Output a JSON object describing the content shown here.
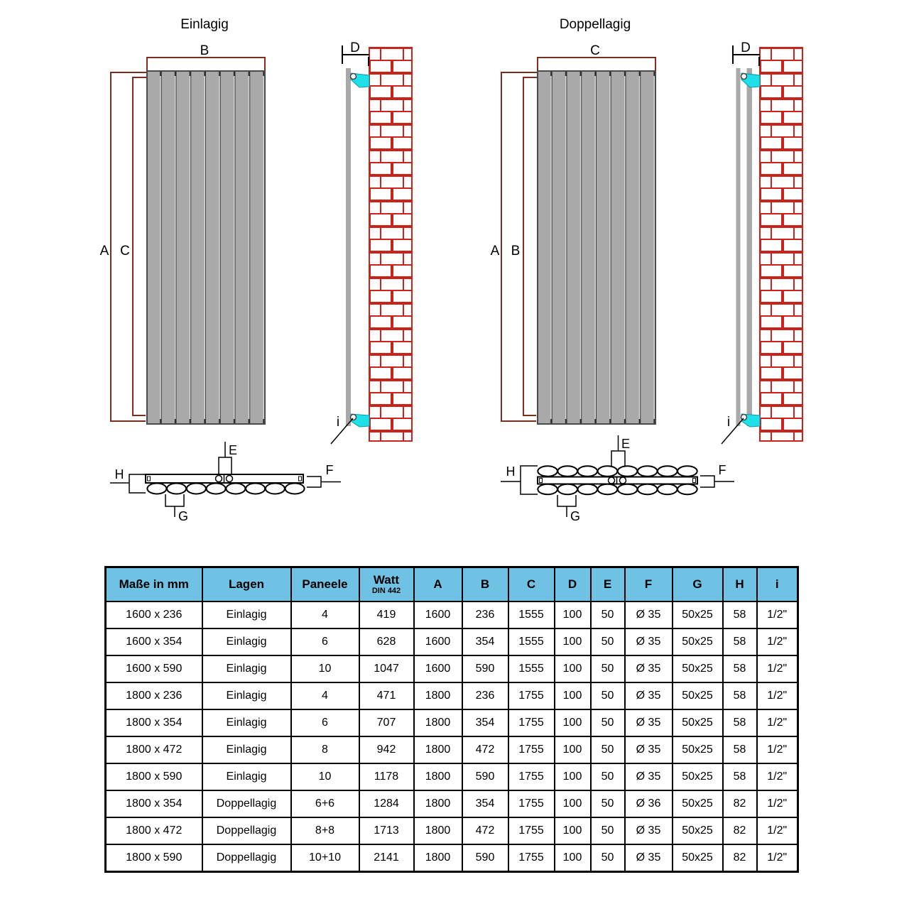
{
  "figure": {
    "left": {
      "title": "Einlagig",
      "dims": {
        "top": "B",
        "outer": "A",
        "inner": "C",
        "depth": "D",
        "valve": "i",
        "e": "E",
        "f": "F",
        "g": "G",
        "h": "H"
      }
    },
    "right": {
      "title": "Doppellagig",
      "dims": {
        "top": "C",
        "outer": "A",
        "inner": "B",
        "depth": "D",
        "valve": "i",
        "e": "E",
        "f": "F",
        "g": "G",
        "h": "H"
      }
    }
  },
  "table": {
    "headers": [
      "Maße in mm",
      "Lagen",
      "Paneele",
      "Watt",
      "A",
      "B",
      "C",
      "D",
      "E",
      "F",
      "G",
      "H",
      "i"
    ],
    "watt_subheader": "DIN 442",
    "rows": [
      [
        "1600 x 236",
        "Einlagig",
        "4",
        "419",
        "1600",
        "236",
        "1555",
        "100",
        "50",
        "Ø 35",
        "50x25",
        "58",
        "1/2\""
      ],
      [
        "1600 x 354",
        "Einlagig",
        "6",
        "628",
        "1600",
        "354",
        "1555",
        "100",
        "50",
        "Ø 35",
        "50x25",
        "58",
        "1/2\""
      ],
      [
        "1600 x 590",
        "Einlagig",
        "10",
        "1047",
        "1600",
        "590",
        "1555",
        "100",
        "50",
        "Ø 35",
        "50x25",
        "58",
        "1/2\""
      ],
      [
        "1800 x 236",
        "Einlagig",
        "4",
        "471",
        "1800",
        "236",
        "1755",
        "100",
        "50",
        "Ø 35",
        "50x25",
        "58",
        "1/2\""
      ],
      [
        "1800 x 354",
        "Einlagig",
        "6",
        "707",
        "1800",
        "354",
        "1755",
        "100",
        "50",
        "Ø 35",
        "50x25",
        "58",
        "1/2\""
      ],
      [
        "1800 x 472",
        "Einlagig",
        "8",
        "942",
        "1800",
        "472",
        "1755",
        "100",
        "50",
        "Ø 35",
        "50x25",
        "58",
        "1/2\""
      ],
      [
        "1800 x 590",
        "Einlagig",
        "10",
        "1178",
        "1800",
        "590",
        "1755",
        "100",
        "50",
        "Ø 35",
        "50x25",
        "58",
        "1/2\""
      ],
      [
        "1800 x 354",
        "Doppellagig",
        "6+6",
        "1284",
        "1800",
        "354",
        "1755",
        "100",
        "50",
        "Ø 36",
        "50x25",
        "82",
        "1/2\""
      ],
      [
        "1800 x 472",
        "Doppellagig",
        "8+8",
        "1713",
        "1800",
        "472",
        "1755",
        "100",
        "50",
        "Ø 35",
        "50x25",
        "82",
        "1/2\""
      ],
      [
        "1800 x 590",
        "Doppellagig",
        "10+10",
        "2141",
        "1800",
        "590",
        "1755",
        "100",
        "50",
        "Ø 35",
        "50x25",
        "82",
        "1/2\""
      ]
    ]
  },
  "colors": {
    "table_header_bg": "#6fc2e4",
    "dimension_line": "#7d2e1f",
    "brick_red": "#c9241c",
    "bracket_cyan": "#1fdfe8",
    "panel_gray": "#a9a9a9"
  }
}
